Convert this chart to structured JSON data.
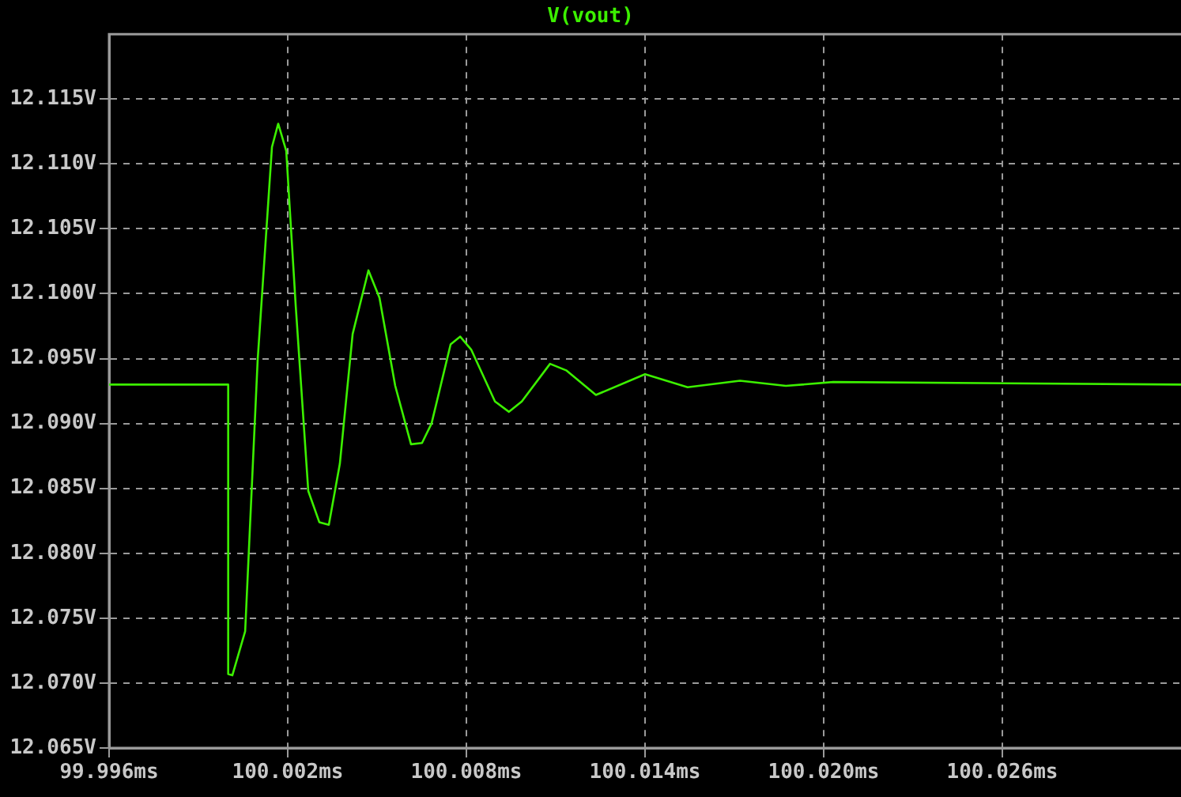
{
  "chart_data": {
    "type": "line",
    "title": "V(vout)",
    "x": [
      99.996,
      100.0,
      100.0,
      100.00014,
      100.00057,
      100.00099,
      100.00147,
      100.00168,
      100.00195,
      100.00227,
      100.00269,
      100.00306,
      100.00338,
      100.00375,
      100.00418,
      100.00471,
      100.00508,
      100.00561,
      100.00614,
      100.00651,
      100.00683,
      100.00747,
      100.00779,
      100.00816,
      100.00896,
      100.00943,
      100.00986,
      100.01081,
      100.01135,
      100.01235,
      100.014,
      100.01543,
      100.01719,
      100.01873,
      100.02032,
      100.032
    ],
    "series": [
      {
        "color": "#3cf000",
        "values": [
          12.093,
          12.093,
          12.0707,
          12.0706,
          12.074,
          12.0949,
          12.1113,
          12.1131,
          12.111,
          12.099,
          12.0848,
          12.0824,
          12.0822,
          12.0869,
          12.0969,
          12.1018,
          12.0997,
          12.0929,
          12.0884,
          12.0885,
          12.09,
          12.0961,
          12.0967,
          12.0957,
          12.0917,
          12.0909,
          12.0917,
          12.0946,
          12.0941,
          12.0922,
          12.0938,
          12.0928,
          12.0933,
          12.0929,
          12.0932,
          12.093
        ]
      }
    ],
    "xlim": [
      99.996,
      100.032
    ],
    "xticks": [
      {
        "value": 99.996,
        "label": "99.996ms"
      },
      {
        "value": 100.002,
        "label": "100.002ms"
      },
      {
        "value": 100.008,
        "label": "100.008ms"
      },
      {
        "value": 100.014,
        "label": "100.014ms"
      },
      {
        "value": 100.02,
        "label": "100.020ms"
      },
      {
        "value": 100.026,
        "label": "100.026ms"
      }
    ],
    "ylim": [
      12.065,
      12.12
    ],
    "yticks": [
      {
        "value": 12.065,
        "label": "12.065V"
      },
      {
        "value": 12.07,
        "label": "12.070V"
      },
      {
        "value": 12.075,
        "label": "12.075V"
      },
      {
        "value": 12.08,
        "label": "12.080V"
      },
      {
        "value": 12.085,
        "label": "12.085V"
      },
      {
        "value": 12.09,
        "label": "12.090V"
      },
      {
        "value": 12.095,
        "label": "12.095V"
      },
      {
        "value": 12.1,
        "label": "12.100V"
      },
      {
        "value": 12.105,
        "label": "12.105V"
      },
      {
        "value": 12.11,
        "label": "12.110V"
      },
      {
        "value": 12.115,
        "label": "12.115V"
      }
    ],
    "grid": true,
    "line_style": "solid",
    "marker": "none"
  }
}
